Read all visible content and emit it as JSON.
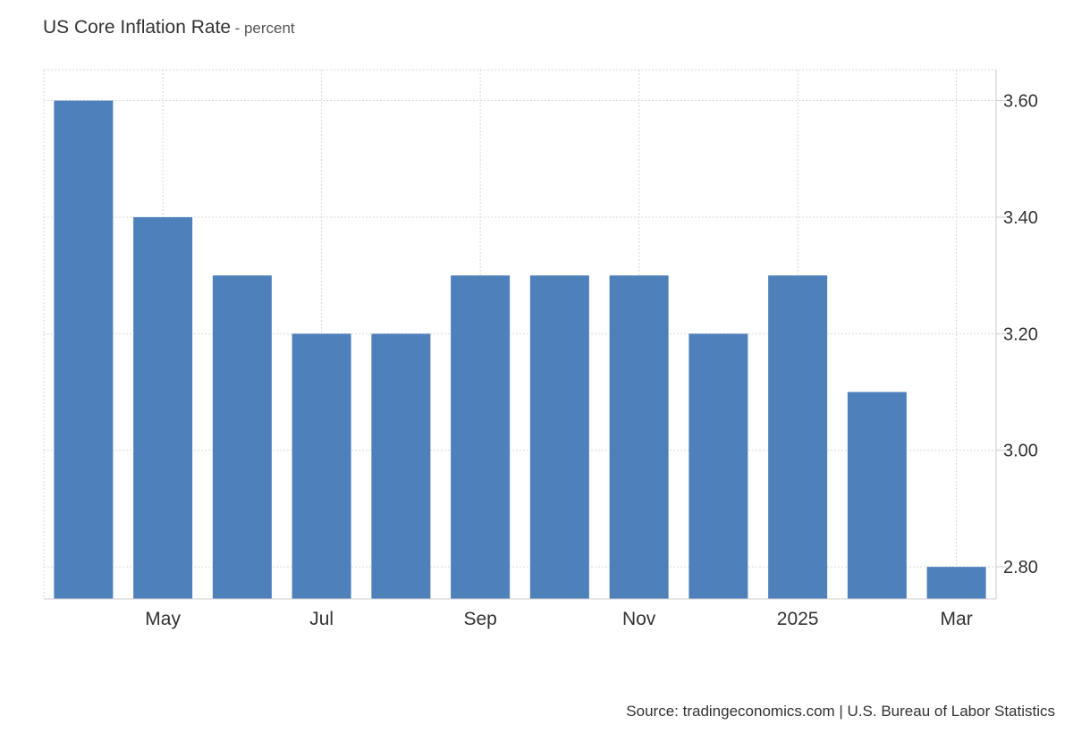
{
  "chart_data": {
    "type": "bar",
    "title": "US Core Inflation Rate",
    "subtitle": "- percent",
    "categories": [
      "Apr 2024",
      "May 2024",
      "Jun 2024",
      "Jul 2024",
      "Aug 2024",
      "Sep 2024",
      "Oct 2024",
      "Nov 2024",
      "Dec 2024",
      "Jan 2025",
      "Feb 2025",
      "Mar 2025"
    ],
    "values": [
      3.6,
      3.4,
      3.3,
      3.2,
      3.2,
      3.3,
      3.3,
      3.3,
      3.2,
      3.3,
      3.1,
      2.8
    ],
    "x_tick_labels": [
      {
        "category": "May 2024",
        "label": "May"
      },
      {
        "category": "Jul 2024",
        "label": "Jul"
      },
      {
        "category": "Sep 2024",
        "label": "Sep"
      },
      {
        "category": "Nov 2024",
        "label": "Nov"
      },
      {
        "category": "Jan 2025",
        "label": "2025"
      },
      {
        "category": "Mar 2025",
        "label": "Mar"
      }
    ],
    "y_ticks": [
      "2.80",
      "3.00",
      "3.20",
      "3.40",
      "3.60"
    ],
    "ylim": [
      2.745,
      3.653
    ],
    "y_axis_side": "right",
    "grid": true,
    "bar_color": "#4e80bc",
    "xlabel": "",
    "ylabel": ""
  },
  "footer": {
    "source": "Source: tradingeconomics.com | U.S. Bureau of Labor Statistics"
  }
}
